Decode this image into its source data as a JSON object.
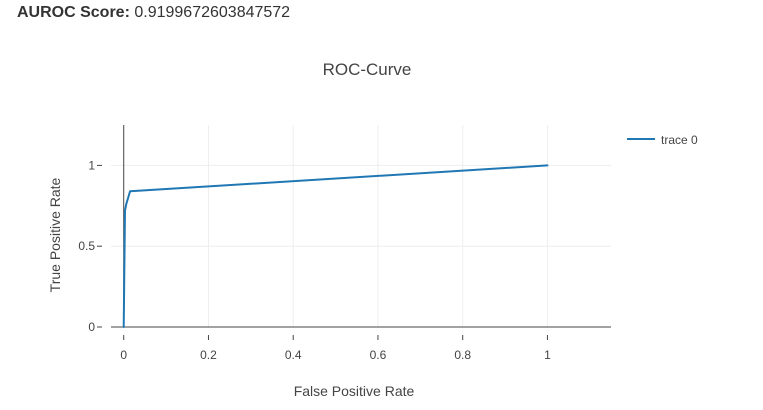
{
  "header": {
    "score_label": "AUROC Score:",
    "score_value": "0.9199672603847572"
  },
  "chart_data": {
    "type": "line",
    "title": "ROC-Curve",
    "xlabel": "False Positive Rate",
    "ylabel": "True Positive Rate",
    "xlim": [
      -0.03,
      1.15
    ],
    "ylim": [
      0,
      1.25
    ],
    "xticks": [
      0,
      0.2,
      0.4,
      0.6,
      0.8,
      1
    ],
    "xtick_labels": [
      "0",
      "0.2",
      "0.4",
      "0.6",
      "0.8",
      "1"
    ],
    "yticks": [
      0,
      0.5,
      1
    ],
    "ytick_labels": [
      "0",
      "0.5",
      "1"
    ],
    "grid": true,
    "legend_position": "top-right",
    "series": [
      {
        "name": "trace 0",
        "color": "#1f77b4",
        "x": [
          0,
          0.003,
          0.006,
          0.015,
          1
        ],
        "y": [
          0,
          0.72,
          0.76,
          0.84,
          1
        ]
      }
    ]
  }
}
